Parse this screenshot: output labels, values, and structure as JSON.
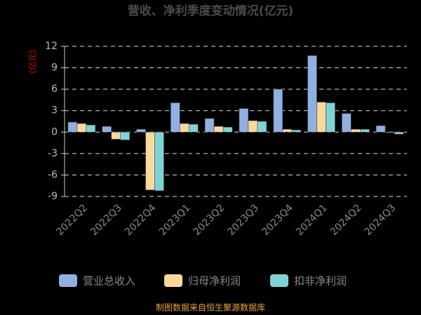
{
  "chart_data": {
    "type": "bar",
    "title": "营收、净利季度变动情况(亿元)",
    "y_label": "(亿元)",
    "categories": [
      "2022Q2",
      "2022Q3",
      "2022Q4",
      "2023Q1",
      "2023Q2",
      "2023Q3",
      "2023Q4",
      "2024Q1",
      "2024Q2",
      "2024Q3"
    ],
    "series": [
      {
        "name": "营业总收入",
        "color": "#8fb0e0",
        "values": [
          1.4,
          0.8,
          0.4,
          4.1,
          1.9,
          3.3,
          6.0,
          10.7,
          2.6,
          0.9
        ]
      },
      {
        "name": "归母净利润",
        "color": "#fcd89a",
        "values": [
          1.2,
          -1.0,
          -8.1,
          1.2,
          0.8,
          1.6,
          0.4,
          4.2,
          0.4,
          -0.1
        ]
      },
      {
        "name": "扣非净利润",
        "color": "#7fd3d6",
        "values": [
          1.0,
          -1.1,
          -8.2,
          1.1,
          0.7,
          1.5,
          0.3,
          4.1,
          0.4,
          -0.3
        ]
      }
    ],
    "ylim": [
      -9,
      12
    ],
    "yticks": [
      -9,
      -6,
      -3,
      0,
      3,
      6,
      9,
      12
    ],
    "grid": true,
    "source": "制图数据来自恒生聚源数据库"
  }
}
